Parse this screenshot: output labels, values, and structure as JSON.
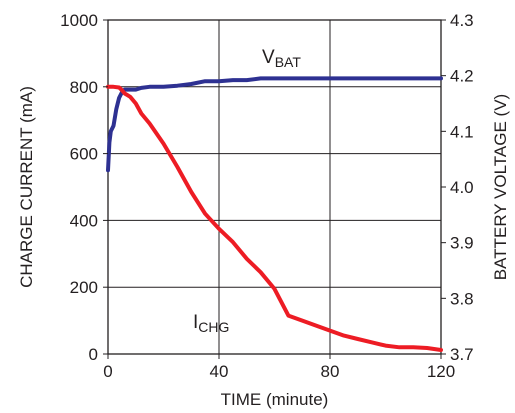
{
  "chart_data": {
    "type": "line",
    "xlabel": "TIME (minute)",
    "ylabel_left": "CHARGE CURRENT (mA)",
    "ylabel_right": "BATTERY VOLTAGE (V)",
    "xlim": [
      0,
      120
    ],
    "ylim_left": [
      0,
      1000
    ],
    "ylim_right": [
      3.7,
      4.3
    ],
    "x_ticks": [
      "0",
      "40",
      "80",
      "120"
    ],
    "y_left_ticks": [
      "0",
      "200",
      "400",
      "600",
      "800",
      "1000"
    ],
    "y_right_ticks": [
      "3.7",
      "3.8",
      "3.9",
      "4.0",
      "4.1",
      "4.2",
      "4.3"
    ],
    "grid": true,
    "series": [
      {
        "name": "VBAT",
        "label_main": "V",
        "label_sub": "BAT",
        "axis": "right",
        "color": "#2e3192",
        "x": [
          0,
          0.5,
          1,
          2,
          3,
          4,
          5,
          6,
          7,
          8,
          10,
          12,
          15,
          20,
          25,
          30,
          35,
          40,
          45,
          50,
          55,
          60,
          70,
          80,
          90,
          100,
          110,
          120
        ],
        "y": [
          4.03,
          4.08,
          4.1,
          4.11,
          4.14,
          4.16,
          4.17,
          4.175,
          4.175,
          4.175,
          4.175,
          4.178,
          4.18,
          4.18,
          4.182,
          4.185,
          4.19,
          4.19,
          4.192,
          4.192,
          4.195,
          4.195,
          4.195,
          4.195,
          4.195,
          4.195,
          4.195,
          4.195
        ]
      },
      {
        "name": "ICHG",
        "label_main": "I",
        "label_sub": "CHG",
        "axis": "left",
        "color": "#ed1c24",
        "x": [
          0,
          2,
          4,
          5,
          6,
          8,
          10,
          12,
          15,
          20,
          25,
          30,
          35,
          40,
          45,
          50,
          55,
          60,
          65,
          70,
          75,
          80,
          85,
          90,
          95,
          100,
          105,
          110,
          115,
          120
        ],
        "y": [
          800,
          800,
          798,
          790,
          780,
          770,
          750,
          720,
          690,
          630,
          560,
          485,
          420,
          375,
          335,
          285,
          245,
          195,
          115,
          100,
          85,
          70,
          55,
          45,
          35,
          25,
          20,
          20,
          18,
          12
        ]
      }
    ]
  }
}
